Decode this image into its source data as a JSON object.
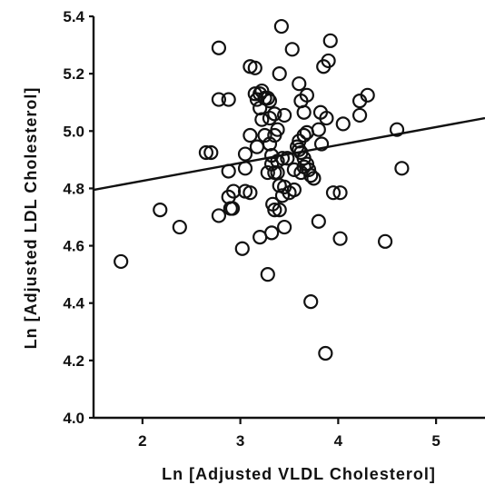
{
  "chart_data": {
    "type": "scatter",
    "title": "",
    "xlabel": "Ln [Adjusted VLDL Cholesterol]",
    "ylabel": "Ln [Adjusted LDL Cholesterol]",
    "xlim": [
      1.5,
      5.5
    ],
    "ylim": [
      4.0,
      5.4
    ],
    "xticks": [
      "2",
      "3",
      "4",
      "5"
    ],
    "yticks": [
      "4.0",
      "4.2",
      "4.4",
      "4.6",
      "4.8",
      "5.0",
      "5.2",
      "5.4"
    ],
    "grid": false,
    "legend": "none",
    "points": [
      [
        1.78,
        4.545
      ],
      [
        2.18,
        4.725
      ],
      [
        2.38,
        4.665
      ],
      [
        2.65,
        4.925
      ],
      [
        2.7,
        4.925
      ],
      [
        2.78,
        5.29
      ],
      [
        2.78,
        5.11
      ],
      [
        2.78,
        4.705
      ],
      [
        2.88,
        5.11
      ],
      [
        2.88,
        4.86
      ],
      [
        2.88,
        4.77
      ],
      [
        2.9,
        4.73
      ],
      [
        2.93,
        4.79
      ],
      [
        2.92,
        4.73
      ],
      [
        3.02,
        4.59
      ],
      [
        3.05,
        4.79
      ],
      [
        3.05,
        4.87
      ],
      [
        3.05,
        4.92
      ],
      [
        3.1,
        5.225
      ],
      [
        3.1,
        4.985
      ],
      [
        3.1,
        4.785
      ],
      [
        3.15,
        5.22
      ],
      [
        3.15,
        5.13
      ],
      [
        3.17,
        5.11
      ],
      [
        3.17,
        4.945
      ],
      [
        3.2,
        5.13
      ],
      [
        3.2,
        5.08
      ],
      [
        3.2,
        4.63
      ],
      [
        3.22,
        5.14
      ],
      [
        3.22,
        5.04
      ],
      [
        3.25,
        5.115
      ],
      [
        3.25,
        4.985
      ],
      [
        3.28,
        5.115
      ],
      [
        3.28,
        4.855
      ],
      [
        3.28,
        4.5
      ],
      [
        3.3,
        5.105
      ],
      [
        3.3,
        5.045
      ],
      [
        3.3,
        4.955
      ],
      [
        3.32,
        4.915
      ],
      [
        3.32,
        4.885
      ],
      [
        3.32,
        4.645
      ],
      [
        3.33,
        4.745
      ],
      [
        3.35,
        5.06
      ],
      [
        3.35,
        4.985
      ],
      [
        3.35,
        4.855
      ],
      [
        3.35,
        4.725
      ],
      [
        3.38,
        5.005
      ],
      [
        3.38,
        4.895
      ],
      [
        3.38,
        4.855
      ],
      [
        3.4,
        5.2
      ],
      [
        3.4,
        4.81
      ],
      [
        3.4,
        4.725
      ],
      [
        3.42,
        5.365
      ],
      [
        3.43,
        4.905
      ],
      [
        3.43,
        4.775
      ],
      [
        3.45,
        5.055
      ],
      [
        3.45,
        4.805
      ],
      [
        3.45,
        4.665
      ],
      [
        3.48,
        4.905
      ],
      [
        3.5,
        4.785
      ],
      [
        3.53,
        5.285
      ],
      [
        3.55,
        4.865
      ],
      [
        3.55,
        4.795
      ],
      [
        3.58,
        4.945
      ],
      [
        3.6,
        5.165
      ],
      [
        3.6,
        4.965
      ],
      [
        3.6,
        4.935
      ],
      [
        3.62,
        5.105
      ],
      [
        3.62,
        4.925
      ],
      [
        3.62,
        4.855
      ],
      [
        3.65,
        5.065
      ],
      [
        3.65,
        4.985
      ],
      [
        3.65,
        4.905
      ],
      [
        3.65,
        4.875
      ],
      [
        3.68,
        5.125
      ],
      [
        3.68,
        4.995
      ],
      [
        3.68,
        4.885
      ],
      [
        3.7,
        4.865
      ],
      [
        3.72,
        4.845
      ],
      [
        3.72,
        4.405
      ],
      [
        3.75,
        4.835
      ],
      [
        3.8,
        5.005
      ],
      [
        3.8,
        4.685
      ],
      [
        3.82,
        5.065
      ],
      [
        3.83,
        4.955
      ],
      [
        3.85,
        5.225
      ],
      [
        3.87,
        4.225
      ],
      [
        3.88,
        5.045
      ],
      [
        3.9,
        5.245
      ],
      [
        3.92,
        5.315
      ],
      [
        3.95,
        4.785
      ],
      [
        4.02,
        4.785
      ],
      [
        4.02,
        4.625
      ],
      [
        4.05,
        5.025
      ],
      [
        4.22,
        5.105
      ],
      [
        4.22,
        5.055
      ],
      [
        4.3,
        5.125
      ],
      [
        4.48,
        4.615
      ],
      [
        4.6,
        5.005
      ],
      [
        4.65,
        4.87
      ]
    ],
    "regression": {
      "x": [
        1.5,
        5.5
      ],
      "y": [
        4.795,
        5.045
      ]
    }
  }
}
